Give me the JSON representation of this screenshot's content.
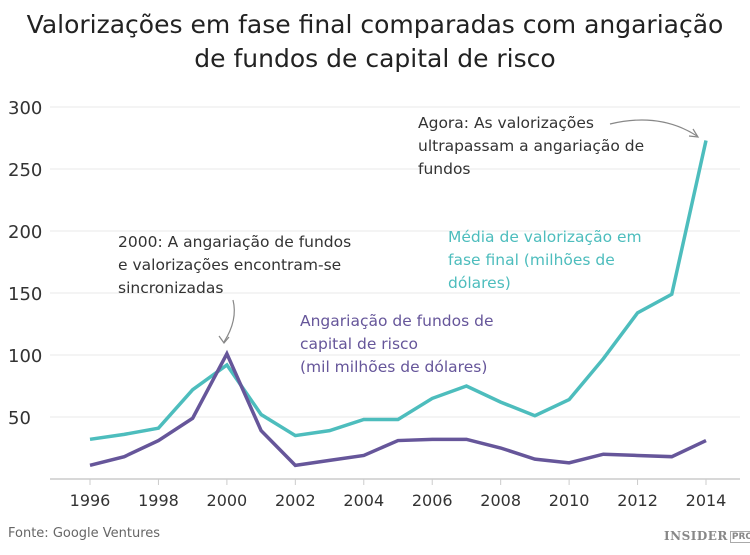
{
  "chart_data": {
    "type": "line",
    "title": "Valorizações em fase final comparadas com angariação de fundos de capital de risco",
    "title_lines": [
      "Valorizações em fase final comparadas com angariação",
      "de fundos de capital de risco"
    ],
    "x": [
      1996,
      1997,
      1998,
      1999,
      2000,
      2001,
      2002,
      2003,
      2004,
      2005,
      2006,
      2007,
      2008,
      2009,
      2010,
      2011,
      2012,
      2013,
      2014
    ],
    "xticks": [
      1996,
      1998,
      2000,
      2002,
      2004,
      2006,
      2008,
      2010,
      2012,
      2014
    ],
    "yticks": [
      50,
      100,
      150,
      200,
      250,
      300
    ],
    "ylim": [
      0,
      300
    ],
    "grid": true,
    "series": [
      {
        "name": "Média de valorização em fase final (milhões de dólares)",
        "color": "#4dbdbd",
        "values": [
          32,
          36,
          41,
          72,
          92,
          52,
          35,
          39,
          48,
          48,
          65,
          75,
          62,
          51,
          64,
          97,
          134,
          149,
          273
        ]
      },
      {
        "name": "Angariação de fundos de capital de risco (mil milhões de dólares)",
        "color": "#66569a",
        "values": [
          11,
          18,
          31,
          49,
          101,
          39,
          11,
          15,
          19,
          31,
          32,
          32,
          25,
          16,
          13,
          20,
          19,
          18,
          31
        ]
      }
    ],
    "annotations": {
      "teal_label": [
        "Média de valorização em",
        "fase final (milhões de",
        "dólares)"
      ],
      "purple_label": [
        "Angariação de fundos de",
        "capital de risco",
        "(mil milhões de dólares)"
      ],
      "note_2000": [
        "2000: A angariação de fundos",
        "e valorizações encontram-se",
        "sincronizadas"
      ],
      "note_now": [
        "Agora: As valorizações",
        "ultrapassam a angariação de",
        "fundos"
      ]
    }
  },
  "footer": {
    "source": "Fonte: Google Ventures",
    "logo": "INSIDER",
    "logo_sup": "PRO"
  }
}
